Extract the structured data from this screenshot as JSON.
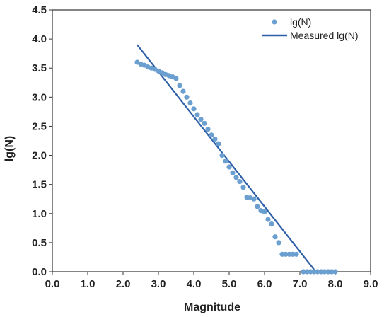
{
  "chart_data": {
    "type": "scatter",
    "title": "",
    "xlabel": "Magnitude",
    "ylabel": "lg(N)",
    "xlim": [
      0,
      9
    ],
    "ylim": [
      0,
      4.5
    ],
    "x_ticks": [
      "0.0",
      "1.0",
      "2.0",
      "3.0",
      "4.0",
      "5.0",
      "6.0",
      "7.0",
      "8.0",
      "9.0"
    ],
    "y_ticks": [
      "0.0",
      "0.5",
      "1.0",
      "1.5",
      "2.0",
      "2.5",
      "3.0",
      "3.5",
      "4.0",
      "4.5"
    ],
    "grid": false,
    "legend_position": "top-right",
    "series": [
      {
        "name": "lg(N)",
        "kind": "points",
        "color": "#6a9fd0",
        "points": [
          [
            2.4,
            3.6
          ],
          [
            2.5,
            3.57
          ],
          [
            2.6,
            3.55
          ],
          [
            2.7,
            3.52
          ],
          [
            2.8,
            3.5
          ],
          [
            2.9,
            3.48
          ],
          [
            3.0,
            3.45
          ],
          [
            3.1,
            3.42
          ],
          [
            3.2,
            3.39
          ],
          [
            3.3,
            3.37
          ],
          [
            3.4,
            3.35
          ],
          [
            3.5,
            3.32
          ],
          [
            3.6,
            3.2
          ],
          [
            3.7,
            3.1
          ],
          [
            3.8,
            3.0
          ],
          [
            3.9,
            2.9
          ],
          [
            4.0,
            2.8
          ],
          [
            4.1,
            2.7
          ],
          [
            4.2,
            2.62
          ],
          [
            4.3,
            2.55
          ],
          [
            4.4,
            2.45
          ],
          [
            4.5,
            2.35
          ],
          [
            4.6,
            2.28
          ],
          [
            4.7,
            2.2
          ],
          [
            4.8,
            2.0
          ],
          [
            4.9,
            1.9
          ],
          [
            5.0,
            1.8
          ],
          [
            5.1,
            1.7
          ],
          [
            5.2,
            1.62
          ],
          [
            5.3,
            1.55
          ],
          [
            5.4,
            1.45
          ],
          [
            5.5,
            1.28
          ],
          [
            5.6,
            1.27
          ],
          [
            5.7,
            1.25
          ],
          [
            5.8,
            1.12
          ],
          [
            5.9,
            1.05
          ],
          [
            6.0,
            1.03
          ],
          [
            6.1,
            0.9
          ],
          [
            6.2,
            0.82
          ],
          [
            6.3,
            0.6
          ],
          [
            6.4,
            0.5
          ],
          [
            6.5,
            0.3
          ],
          [
            6.6,
            0.3
          ],
          [
            6.7,
            0.3
          ],
          [
            6.8,
            0.3
          ],
          [
            6.9,
            0.3
          ],
          [
            7.1,
            0.0
          ],
          [
            7.2,
            0.0
          ],
          [
            7.3,
            0.0
          ],
          [
            7.4,
            0.0
          ],
          [
            7.5,
            0.0
          ],
          [
            7.6,
            0.0
          ],
          [
            7.7,
            0.0
          ],
          [
            7.8,
            0.0
          ],
          [
            7.9,
            0.0
          ],
          [
            8.0,
            0.0
          ]
        ]
      },
      {
        "name": "Measured lg(N)",
        "kind": "line",
        "color": "#2e5fa8",
        "points": [
          [
            2.4,
            3.9
          ],
          [
            7.45,
            0.0
          ],
          [
            8.0,
            0.0
          ]
        ]
      }
    ]
  }
}
